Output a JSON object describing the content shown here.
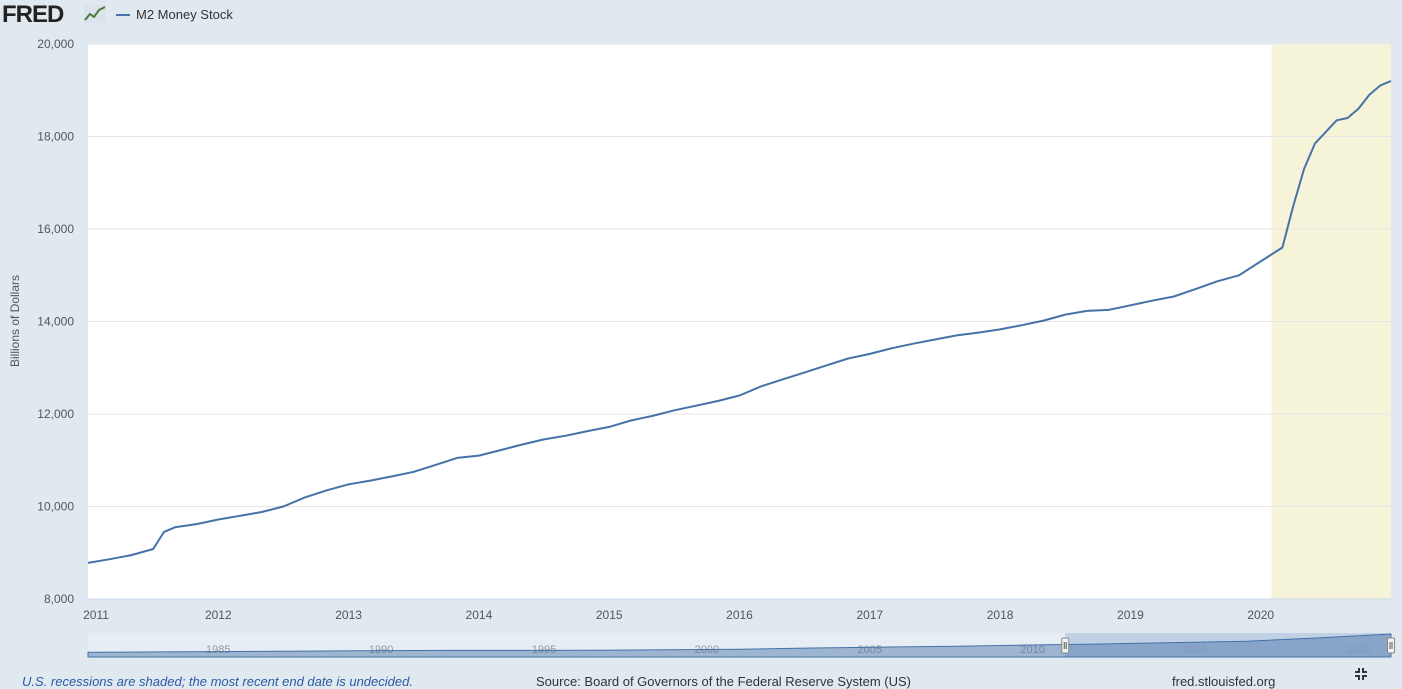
{
  "header": {
    "logo_text": "FRED",
    "legend_label": "M2 Money Stock"
  },
  "chart_data": {
    "type": "line",
    "series": [
      {
        "name": "M2 Money Stock",
        "color": "#4572a7",
        "x": [
          "2011-01",
          "2011-03",
          "2011-05",
          "2011-07",
          "2011-08",
          "2011-09",
          "2011-11",
          "2012-01",
          "2012-03",
          "2012-05",
          "2012-07",
          "2012-09",
          "2012-11",
          "2013-01",
          "2013-03",
          "2013-05",
          "2013-07",
          "2013-09",
          "2013-11",
          "2014-01",
          "2014-03",
          "2014-05",
          "2014-07",
          "2014-09",
          "2014-11",
          "2015-01",
          "2015-03",
          "2015-05",
          "2015-07",
          "2015-09",
          "2015-11",
          "2016-01",
          "2016-03",
          "2016-05",
          "2016-07",
          "2016-09",
          "2016-11",
          "2017-01",
          "2017-03",
          "2017-05",
          "2017-07",
          "2017-09",
          "2017-11",
          "2018-01",
          "2018-03",
          "2018-05",
          "2018-07",
          "2018-09",
          "2018-11",
          "2019-01",
          "2019-03",
          "2019-05",
          "2019-07",
          "2019-09",
          "2019-11",
          "2020-01",
          "2020-02",
          "2020-03",
          "2020-04",
          "2020-05",
          "2020-06",
          "2020-07",
          "2020-08",
          "2020-09",
          "2020-10",
          "2020-11",
          "2020-12",
          "2021-01"
        ],
        "values": [
          8780,
          8860,
          8950,
          9080,
          9450,
          9550,
          9620,
          9720,
          9800,
          9880,
          10000,
          10200,
          10350,
          10480,
          10560,
          10650,
          10750,
          10900,
          11050,
          11100,
          11220,
          11340,
          11450,
          11530,
          11630,
          11720,
          11860,
          11960,
          12080,
          12180,
          12280,
          12400,
          12600,
          12750,
          12900,
          13050,
          13200,
          13300,
          13420,
          13520,
          13610,
          13700,
          13760,
          13830,
          13920,
          14020,
          14150,
          14230,
          14250,
          14350,
          14450,
          14540,
          14700,
          14870,
          15000,
          15300,
          15450,
          15600,
          16500,
          17300,
          17850,
          18100,
          18350,
          18400,
          18600,
          18900,
          19100,
          19200
        ]
      }
    ],
    "xlim": [
      "2011-01",
      "2021-01"
    ],
    "ylim": [
      8000,
      20000
    ],
    "x_ticks": [
      "2011",
      "2012",
      "2013",
      "2014",
      "2015",
      "2016",
      "2017",
      "2018",
      "2019",
      "2020"
    ],
    "y_ticks": [
      "8,000",
      "10,000",
      "12,000",
      "14,000",
      "16,000",
      "18,000",
      "20,000"
    ],
    "ylabel": "Billions of Dollars",
    "recession_shading": {
      "start": "2020-02",
      "end": "2021-01",
      "color": "#f6f4d8"
    },
    "grid": "horizontal",
    "navigator": {
      "labels": [
        "1985",
        "1990",
        "1995",
        "2000",
        "2005",
        "2010",
        "2015",
        "2020"
      ],
      "range": [
        "1981-01",
        "2021-01"
      ],
      "selected_range": [
        "2011-01",
        "2021-01"
      ],
      "values": [
        1600,
        2000,
        2400,
        2800,
        3300,
        3500,
        3500,
        3600,
        4100,
        4500,
        5800,
        6600,
        7500,
        8600,
        9600,
        10900,
        12300,
        15500,
        19200
      ]
    }
  },
  "footer": {
    "footnote": "U.S. recessions are shaded; the most recent end date is undecided.",
    "source": "Source: Board of Governors of the Federal Reserve System (US)",
    "site": "fred.stlouisfed.org"
  }
}
